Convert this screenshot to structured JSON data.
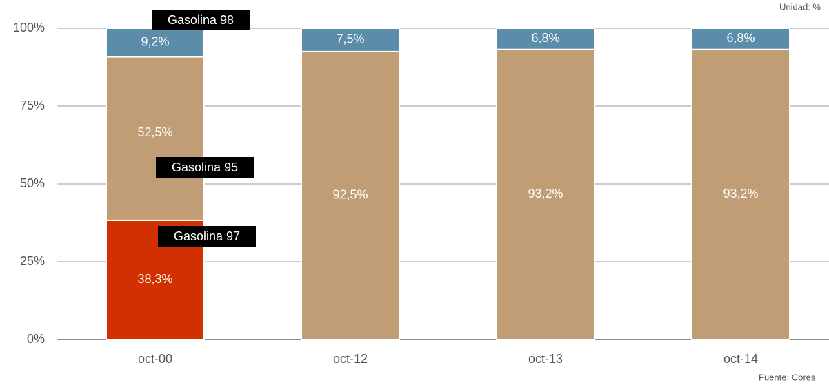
{
  "chart_data": {
    "type": "stacked_bar",
    "unit_note": "Unidad: %",
    "source": "Fuente: Cores",
    "categories": [
      "oct-00",
      "oct-12",
      "oct-13",
      "oct-14"
    ],
    "series": [
      {
        "name": "Gasolina 97",
        "color": "#d23000",
        "values": [
          38.3,
          null,
          null,
          null
        ],
        "value_labels": [
          "38,3%",
          null,
          null,
          null
        ]
      },
      {
        "name": "Gasolina 95",
        "color": "#c19d75",
        "values": [
          52.5,
          92.5,
          93.2,
          93.2
        ],
        "value_labels": [
          "52,5%",
          "92,5%",
          "93,2%",
          "93,2%"
        ]
      },
      {
        "name": "Gasolina 98",
        "color": "#5b8ca9",
        "values": [
          9.2,
          7.5,
          6.8,
          6.8
        ],
        "value_labels": [
          "9,2%",
          "7,5%",
          "6,8%",
          "6,8%"
        ]
      }
    ],
    "ylim": [
      0,
      100
    ],
    "yticks": [
      {
        "value": 0,
        "label": "0%"
      },
      {
        "value": 25,
        "label": "25%"
      },
      {
        "value": 50,
        "label": "50%"
      },
      {
        "value": 75,
        "label": "75%"
      },
      {
        "value": 100,
        "label": "100%"
      }
    ],
    "grid": true
  }
}
